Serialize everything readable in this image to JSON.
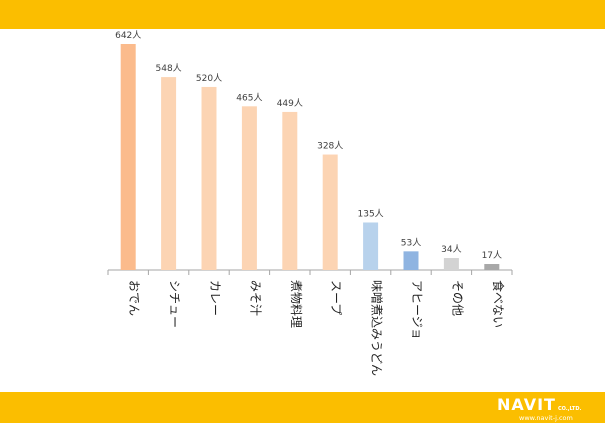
{
  "header_band_color": "#fbbe00",
  "footer_band_color": "#fbbe00",
  "logo": {
    "main": "NAVIT",
    "suffix": "CO.,LTD.",
    "url": "www.navit-j.com"
  },
  "chart_data": {
    "type": "bar",
    "title": "",
    "xlabel": "",
    "ylabel": "",
    "ylim": [
      0,
      700
    ],
    "grid": false,
    "unit_suffix": "人",
    "categories": [
      "おでん",
      "シチュー",
      "カレー",
      "みそ汁",
      "煮物料理",
      "スープ",
      "味噌煮込みうどん",
      "アヒージョ",
      "その他",
      "食べない"
    ],
    "values": [
      642,
      548,
      520,
      465,
      449,
      328,
      135,
      53,
      34,
      17
    ],
    "value_labels": [
      "642人",
      "548人",
      "520人",
      "465人",
      "449人",
      "328人",
      "135人",
      "53人",
      "34人",
      "17人"
    ],
    "colors": [
      "#fbbb8c",
      "#fcd4b3",
      "#fcd4b3",
      "#fcd4b3",
      "#fcd4b3",
      "#fcd4b3",
      "#b8d2ec",
      "#8fb4e1",
      "#d3d3d3",
      "#a8a8a8"
    ]
  }
}
